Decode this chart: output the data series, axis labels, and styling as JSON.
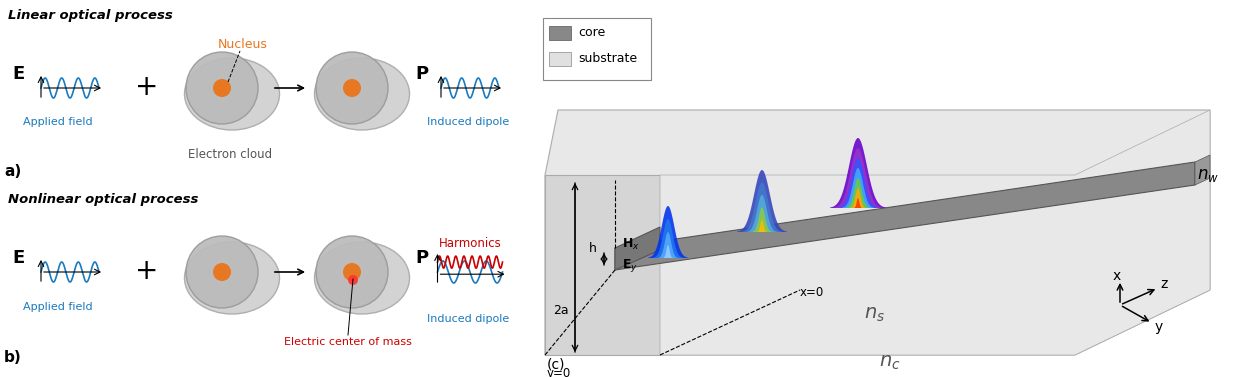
{
  "bg_color": "#ffffff",
  "title_linear": "Linear optical process",
  "title_nonlinear": "Nonlinear optical process",
  "label_a": "a)",
  "label_b": "b)",
  "label_c": "(c)",
  "nucleus_color": "#e87722",
  "nucleus_label": "Nucleus",
  "nucleus_label_color": "#e87722",
  "electron_cloud_label": "Electron cloud",
  "electron_cloud_label_color": "#555555",
  "applied_field_label": "Applied field",
  "applied_field_color": "#1a7abf",
  "induced_dipole_label": "Induced dipole",
  "induced_dipole_color": "#1a7abf",
  "harmonics_label": "Harmonics",
  "harmonics_color": "#cc0000",
  "electric_center_label": "Electric center of mass",
  "electric_center_color": "#cc0000",
  "wave_color_blue": "#1a7abf",
  "wave_color_red": "#cc0000",
  "legend_core_color": "#888888",
  "legend_substrate_color": "#e0e0e0",
  "outer_ellipse_color": "#d0d0d0",
  "inner_circle_color": "#bbbbbb",
  "sub_face_color": "#e8e8e8",
  "wg_top_color": "#888888",
  "wg_side_color": "#777777",
  "ns_color": "#555555",
  "nc_color": "#555555"
}
